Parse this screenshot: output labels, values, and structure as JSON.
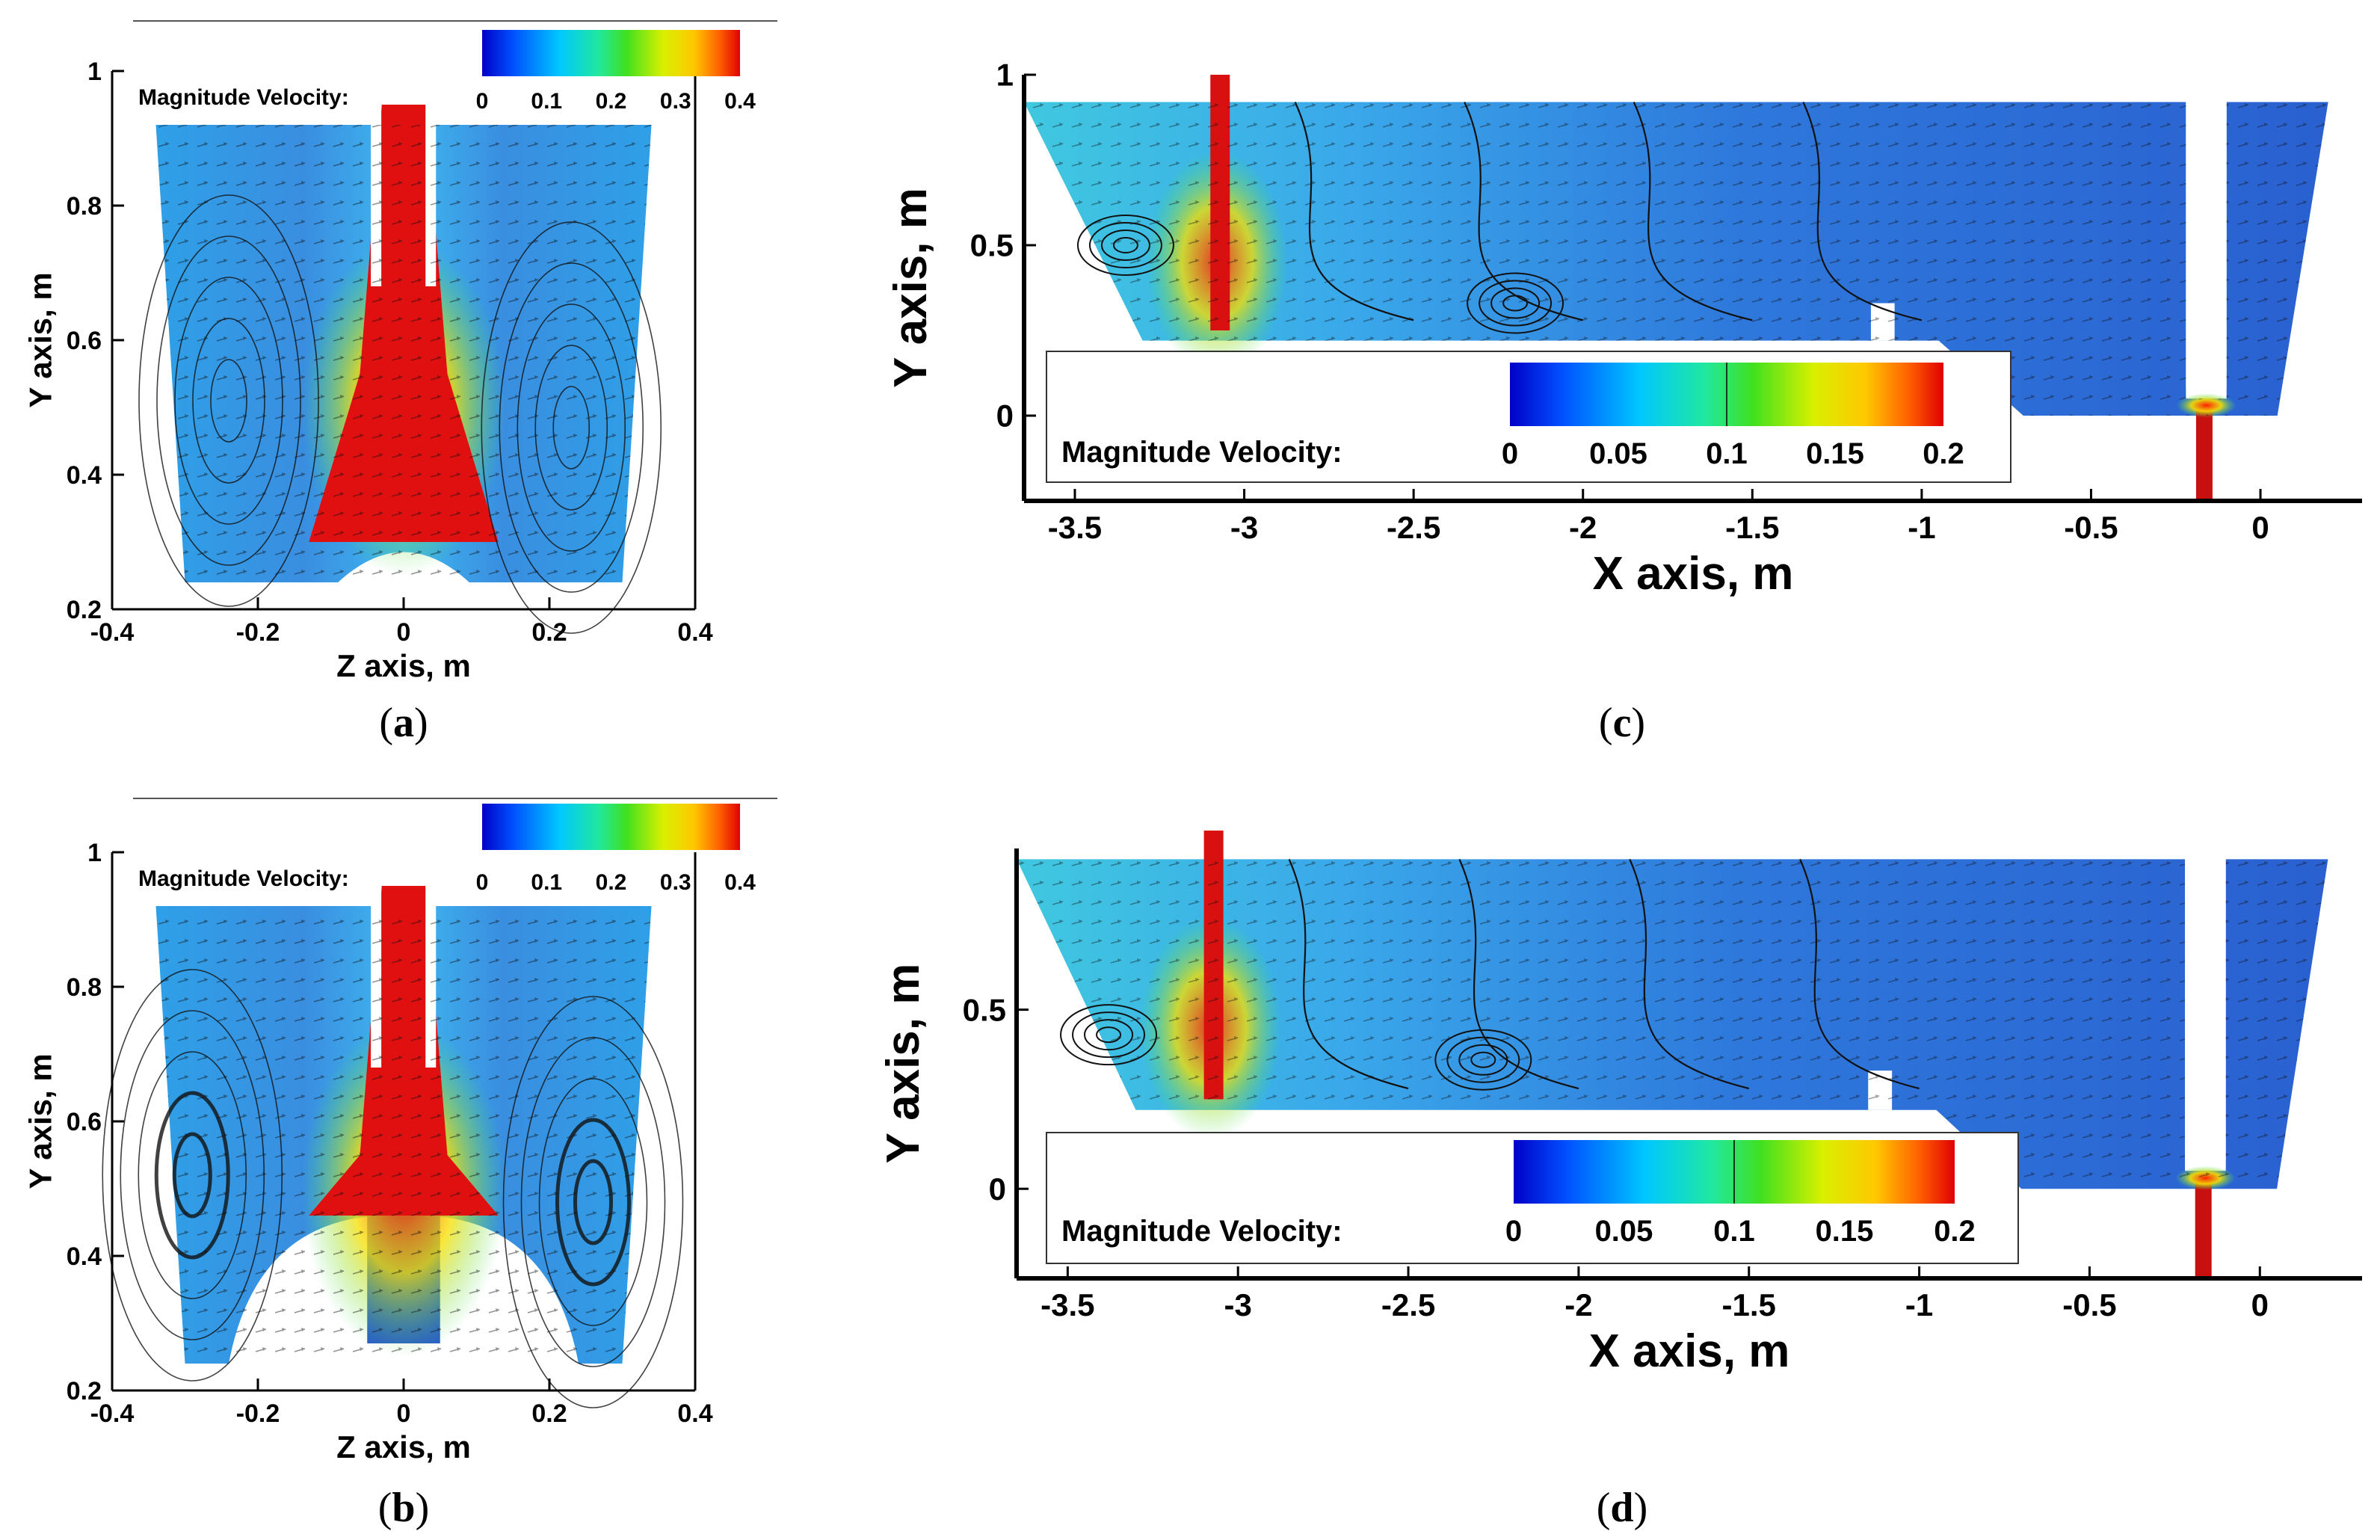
{
  "colors": {
    "jet": [
      "#0000c8",
      "#0050ff",
      "#00c8ff",
      "#20e8a0",
      "#40e020",
      "#d8f000",
      "#ffc800",
      "#ff6000",
      "#e00000"
    ],
    "field_low": "#2a6fd8",
    "field_mid": "#3fa0ec",
    "jet_core": "#e01010",
    "streamline": "#111111",
    "axis": "#000000"
  },
  "chart_data": [
    {
      "panel": "a",
      "type": "contour",
      "caption": "a",
      "xlabel": "Z axis, m",
      "ylabel": "Y axis, m",
      "xlim": [
        -0.4,
        0.4
      ],
      "ylim": [
        0.2,
        1.0
      ],
      "xticks": [
        -0.4,
        -0.2,
        0,
        0.2,
        0.4
      ],
      "xtick_labels": [
        "-0.4",
        "-0.2",
        "0",
        "0.2",
        "0.4"
      ],
      "yticks": [
        0.2,
        0.4,
        0.6,
        0.8,
        1.0
      ],
      "ytick_labels": [
        "0.2",
        "0.4",
        "0.6",
        "0.8",
        "1"
      ],
      "legend": {
        "title": "Magnitude Velocity:",
        "values": [
          0,
          0.1,
          0.2,
          0.3,
          0.4
        ],
        "labels": [
          "0",
          "0.1",
          "0.2",
          "0.3",
          "0.4"
        ],
        "position": "top"
      },
      "vortices": [
        [
          -0.24,
          0.51
        ],
        [
          0.23,
          0.47
        ]
      ]
    },
    {
      "panel": "b",
      "type": "contour",
      "caption": "b",
      "xlabel": "Z axis, m",
      "ylabel": "Y axis, m",
      "xlim": [
        -0.4,
        0.4
      ],
      "ylim": [
        0.2,
        1.0
      ],
      "xticks": [
        -0.4,
        -0.2,
        0,
        0.2,
        0.4
      ],
      "xtick_labels": [
        "-0.4",
        "-0.2",
        "0",
        "0.2",
        "0.4"
      ],
      "yticks": [
        0.2,
        0.4,
        0.6,
        0.8,
        1.0
      ],
      "ytick_labels": [
        "0.2",
        "0.4",
        "0.6",
        "0.8",
        "1"
      ],
      "legend": {
        "title": "Magnitude Velocity:",
        "values": [
          0,
          0.1,
          0.2,
          0.3,
          0.4
        ],
        "labels": [
          "0",
          "0.1",
          "0.2",
          "0.3",
          "0.4"
        ],
        "position": "top"
      },
      "vortices": [
        [
          -0.29,
          0.52
        ],
        [
          0.26,
          0.48
        ]
      ]
    },
    {
      "panel": "c",
      "type": "contour",
      "caption": "c",
      "xlabel": "X axis, m",
      "ylabel": "Y axis, m",
      "xlim": [
        -3.65,
        0.3
      ],
      "ylim": [
        -0.25,
        1.0
      ],
      "xticks": [
        -3.5,
        -3,
        -2.5,
        -2,
        -1.5,
        -1,
        -0.5,
        0
      ],
      "xtick_labels": [
        "-3.5",
        "-3",
        "-2.5",
        "-2",
        "-1.5",
        "-1",
        "-0.5",
        "0"
      ],
      "yticks": [
        0,
        0.5,
        1.0
      ],
      "ytick_labels": [
        "0",
        "0.5",
        "1"
      ],
      "legend": {
        "title": "Magnitude Velocity:",
        "values": [
          0,
          0.05,
          0.1,
          0.15,
          0.2
        ],
        "labels": [
          "0",
          "0.05",
          "0.1",
          "0.15",
          "0.2"
        ],
        "position": "bottom-left"
      },
      "vortices": [
        [
          -2.2,
          0.33
        ],
        [
          -3.35,
          0.5
        ]
      ]
    },
    {
      "panel": "d",
      "type": "contour",
      "caption": "d",
      "xlabel": "X axis, m",
      "ylabel": "Y axis, m",
      "xlim": [
        -3.65,
        0.3
      ],
      "ylim": [
        -0.25,
        0.95
      ],
      "xticks": [
        -3.5,
        -3,
        -2.5,
        -2,
        -1.5,
        -1,
        -0.5,
        0
      ],
      "xtick_labels": [
        "-3.5",
        "-3",
        "-2.5",
        "-2",
        "-1.5",
        "-1",
        "-0.5",
        "0"
      ],
      "yticks": [
        0,
        0.5
      ],
      "ytick_labels": [
        "0",
        "0.5"
      ],
      "legend": {
        "title": "Magnitude Velocity:",
        "values": [
          0,
          0.05,
          0.1,
          0.15,
          0.2
        ],
        "labels": [
          "0",
          "0.05",
          "0.1",
          "0.15",
          "0.2"
        ],
        "position": "bottom-left"
      },
      "vortices": [
        [
          -2.28,
          0.36
        ],
        [
          -3.38,
          0.43
        ]
      ]
    }
  ]
}
